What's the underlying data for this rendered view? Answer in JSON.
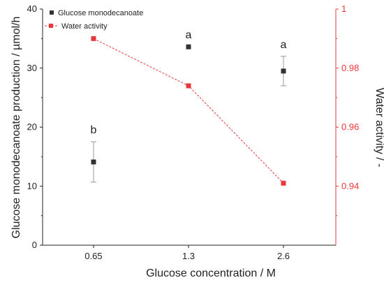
{
  "chart_data": {
    "type": "scatter",
    "categories": [
      "0.65",
      "1.3",
      "2.6"
    ],
    "xlabel": "Glucose concentration / M",
    "ylabel_left": "Glucose monodecanoate production / µmol/h",
    "ylabel_right": "Water activity / -",
    "ylim_left": [
      0,
      40
    ],
    "yticks_left": [
      "0",
      "10",
      "20",
      "30",
      "40"
    ],
    "ylim_right": [
      0.92,
      1.0
    ],
    "yticks_right": [
      "0.94",
      "0.96",
      "0.98",
      "1"
    ],
    "legend_position": "top-left",
    "grid": false,
    "series": [
      {
        "name": "Glucose monodecanoate",
        "axis": "left",
        "marker": "square",
        "color": "#333333",
        "values": [
          14.1,
          33.6,
          29.5
        ],
        "error": [
          3.4,
          0,
          2.5
        ],
        "annotations": [
          "b",
          "a",
          "a"
        ]
      },
      {
        "name": "Water activity",
        "axis": "right",
        "marker": "square",
        "line": "dashed",
        "color": "#e8373b",
        "values": [
          0.99,
          0.974,
          0.941
        ]
      }
    ]
  }
}
